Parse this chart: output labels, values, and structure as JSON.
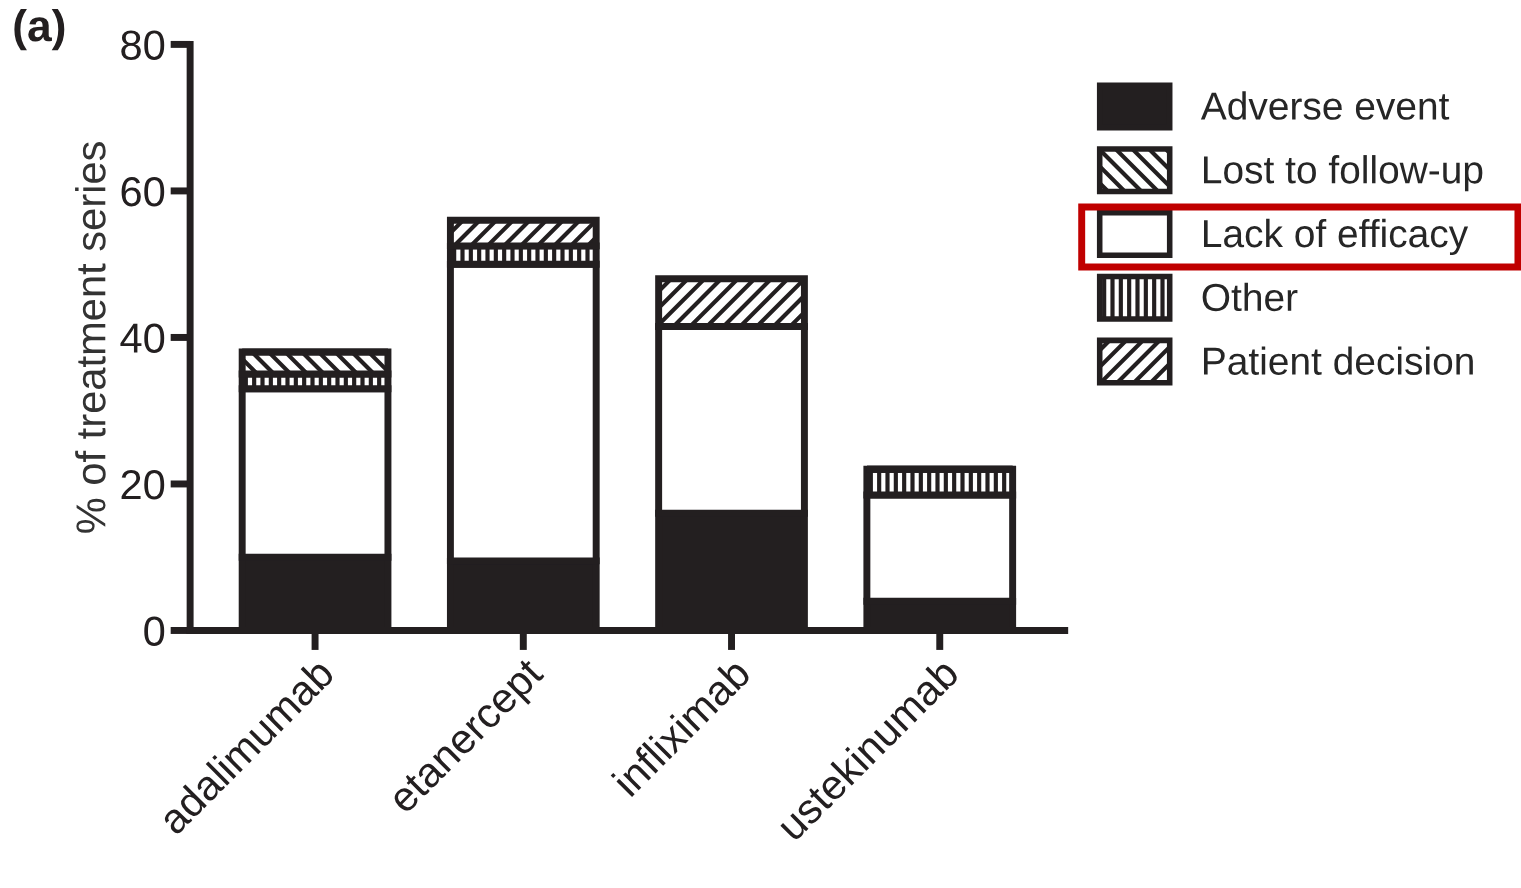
{
  "chart_data": {
    "type": "bar",
    "stacked": true,
    "ylabel": "% of treatment series",
    "annotations": [
      "(a)"
    ],
    "categories": [
      "adalimumab",
      "etanercept",
      "infliximab",
      "ustekinumab"
    ],
    "series": [
      {
        "name": "Adverse event",
        "color": "#231f20",
        "values": [
          10,
          9.5,
          16,
          4
        ]
      },
      {
        "name": "Lack of efficacy",
        "color": "#ffffff",
        "values": [
          23,
          40.5,
          25.5,
          14.5
        ]
      },
      {
        "name": "Other",
        "color": "#231f20",
        "values": [
          2,
          2.5,
          0,
          3.5
        ]
      },
      {
        "name": "Lost to follow-up",
        "color": "#231f20",
        "values": [
          3,
          0,
          0,
          0
        ]
      },
      {
        "name": "Patient decision",
        "color": "#231f20",
        "values": [
          0,
          3.5,
          6.5,
          0
        ]
      }
    ],
    "ylim": [
      0,
      80
    ],
    "yticks": [
      0,
      20,
      40,
      60,
      80
    ],
    "grid": false,
    "legend": "top right"
  }
}
